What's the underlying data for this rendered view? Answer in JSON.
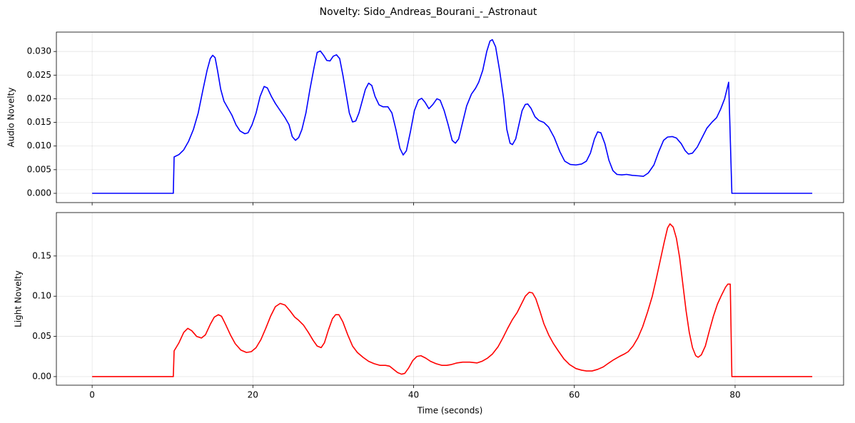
{
  "title": "Novelty: Sido_Andreas_Bourani_-_Astronaut",
  "chart_data": [
    {
      "type": "line",
      "ylabel": "Audio Novelty",
      "color": "#0000ff",
      "grid": true,
      "xlim": [
        -4.45,
        93.5
      ],
      "ylim": [
        -0.00196,
        0.0341
      ],
      "xticks": [
        0,
        20,
        40,
        60,
        80
      ],
      "yticks": [
        {
          "value": 0,
          "label": "0.000"
        },
        {
          "value": 0.005,
          "label": "0.005"
        },
        {
          "value": 0.01,
          "label": "0.010"
        },
        {
          "value": 0.015,
          "label": "0.015"
        },
        {
          "value": 0.02,
          "label": "0.020"
        },
        {
          "value": 0.025,
          "label": "0.025"
        },
        {
          "value": 0.03,
          "label": "0.030"
        }
      ],
      "x": [
        0,
        10,
        10.1,
        10.2,
        10.8,
        11.4,
        12,
        12.6,
        13.2,
        13.8,
        14.3,
        14.7,
        15.0,
        15.3,
        15.6,
        16.0,
        16.4,
        16.9,
        17.4,
        17.9,
        18.4,
        19.0,
        19.4,
        19.9,
        20.4,
        20.9,
        21.4,
        21.8,
        22.3,
        22.8,
        23.4,
        24,
        24.5,
        24.9,
        25.3,
        25.7,
        26.1,
        26.6,
        27.1,
        27.6,
        28.0,
        28.4,
        28.8,
        29.2,
        29.6,
        30.0,
        30.4,
        30.8,
        31.2,
        31.6,
        32.0,
        32.4,
        32.8,
        33.2,
        33.6,
        34.0,
        34.4,
        34.8,
        35.2,
        35.7,
        36.2,
        36.8,
        37.3,
        37.8,
        38.3,
        38.7,
        39.1,
        39.6,
        40.1,
        40.6,
        41.0,
        41.4,
        41.9,
        42.4,
        42.9,
        43.3,
        43.8,
        44.3,
        44.8,
        45.2,
        45.6,
        46.1,
        46.6,
        47.2,
        47.7,
        48.1,
        48.6,
        49.1,
        49.5,
        49.8,
        50.2,
        50.7,
        51.2,
        51.6,
        52.0,
        52.3,
        52.7,
        53.1,
        53.5,
        53.9,
        54.2,
        54.6,
        55.1,
        55.6,
        56.2,
        56.8,
        57.5,
        58.2,
        58.8,
        59.5,
        60.2,
        60.9,
        61.5,
        62.0,
        62.5,
        62.9,
        63.3,
        63.8,
        64.3,
        64.8,
        65.3,
        65.9,
        66.5,
        67.2,
        68.0,
        68.6,
        69.2,
        69.9,
        70.5,
        71.1,
        71.6,
        72.2,
        72.7,
        73.3,
        73.8,
        74.2,
        74.7,
        75.3,
        75.9,
        76.5,
        77.1,
        77.7,
        78.2,
        78.7,
        79.2,
        79.6,
        89.6
      ],
      "values": [
        0,
        0,
        0,
        0.0077,
        0.0082,
        0.0092,
        0.011,
        0.0135,
        0.017,
        0.022,
        0.026,
        0.0285,
        0.0292,
        0.0287,
        0.026,
        0.022,
        0.0195,
        0.018,
        0.0165,
        0.0145,
        0.0132,
        0.0126,
        0.0128,
        0.0145,
        0.017,
        0.0205,
        0.0226,
        0.0223,
        0.0205,
        0.019,
        0.0175,
        0.016,
        0.0145,
        0.012,
        0.0112,
        0.0118,
        0.0135,
        0.017,
        0.022,
        0.0265,
        0.0298,
        0.0301,
        0.0292,
        0.0281,
        0.028,
        0.029,
        0.0293,
        0.0285,
        0.025,
        0.021,
        0.017,
        0.0151,
        0.0153,
        0.017,
        0.0195,
        0.022,
        0.0233,
        0.0228,
        0.0205,
        0.0187,
        0.0183,
        0.0183,
        0.017,
        0.0135,
        0.0095,
        0.0081,
        0.009,
        0.013,
        0.0175,
        0.0197,
        0.0201,
        0.0193,
        0.0179,
        0.0188,
        0.02,
        0.0197,
        0.0175,
        0.0145,
        0.0112,
        0.0106,
        0.0115,
        0.015,
        0.0185,
        0.021,
        0.0222,
        0.0235,
        0.026,
        0.03,
        0.0322,
        0.0325,
        0.031,
        0.026,
        0.02,
        0.0135,
        0.0106,
        0.0103,
        0.0115,
        0.0145,
        0.0175,
        0.0188,
        0.0189,
        0.018,
        0.0162,
        0.0154,
        0.015,
        0.014,
        0.0118,
        0.0088,
        0.0068,
        0.0061,
        0.006,
        0.0062,
        0.0068,
        0.0085,
        0.0115,
        0.013,
        0.0128,
        0.0105,
        0.007,
        0.0048,
        0.004,
        0.0039,
        0.004,
        0.0038,
        0.0037,
        0.0036,
        0.0043,
        0.006,
        0.0088,
        0.0112,
        0.0119,
        0.012,
        0.0117,
        0.0105,
        0.009,
        0.0083,
        0.0085,
        0.0098,
        0.0118,
        0.0138,
        0.015,
        0.016,
        0.0178,
        0.02,
        0.0235,
        0,
        0
      ]
    },
    {
      "type": "line",
      "ylabel": "Light Novelty",
      "xlabel": "Time (seconds)",
      "color": "#ff0000",
      "grid": true,
      "xlim": [
        -4.45,
        93.5
      ],
      "ylim": [
        -0.0107,
        0.204
      ],
      "xticks": [
        0,
        20,
        40,
        60,
        80
      ],
      "yticks": [
        {
          "value": 0,
          "label": "0.00"
        },
        {
          "value": 0.05,
          "label": "0.05"
        },
        {
          "value": 0.1,
          "label": "0.10"
        },
        {
          "value": 0.15,
          "label": "0.15"
        }
      ],
      "x": [
        0,
        10,
        10.1,
        10.2,
        10.8,
        11.4,
        11.9,
        12.4,
        13.0,
        13.6,
        14.1,
        14.7,
        15.2,
        15.7,
        16.1,
        16.6,
        17.2,
        17.8,
        18.5,
        19.2,
        19.8,
        20.4,
        21.0,
        21.6,
        22.2,
        22.8,
        23.4,
        24.0,
        24.6,
        25.2,
        25.7,
        26.3,
        26.9,
        27.5,
        28.0,
        28.5,
        28.9,
        29.4,
        29.9,
        30.3,
        30.7,
        31.2,
        31.8,
        32.4,
        33.0,
        33.7,
        34.4,
        35.1,
        35.8,
        36.5,
        37.0,
        37.5,
        38.0,
        38.5,
        38.9,
        39.4,
        39.9,
        40.4,
        40.9,
        41.5,
        42.1,
        42.8,
        43.5,
        44.1,
        44.7,
        45.4,
        46.1,
        47.0,
        47.9,
        48.5,
        49.2,
        49.8,
        50.5,
        51.1,
        51.7,
        52.3,
        52.9,
        53.4,
        53.9,
        54.4,
        54.8,
        55.2,
        55.7,
        56.2,
        56.8,
        57.4,
        58.0,
        58.7,
        59.4,
        60.2,
        60.9,
        61.5,
        62.2,
        62.9,
        63.6,
        64.3,
        64.9,
        65.6,
        66.2,
        66.7,
        67.3,
        67.9,
        68.5,
        69.1,
        69.7,
        70.2,
        70.7,
        71.2,
        71.6,
        71.9,
        72.3,
        72.7,
        73.1,
        73.5,
        73.9,
        74.3,
        74.7,
        75.1,
        75.4,
        75.8,
        76.3,
        76.8,
        77.3,
        77.8,
        78.3,
        78.8,
        79.1,
        79.4,
        79.6,
        89.6
      ],
      "values": [
        0,
        0,
        0,
        0.032,
        0.042,
        0.055,
        0.06,
        0.057,
        0.05,
        0.048,
        0.052,
        0.065,
        0.074,
        0.077,
        0.075,
        0.065,
        0.052,
        0.041,
        0.033,
        0.03,
        0.031,
        0.036,
        0.046,
        0.06,
        0.075,
        0.087,
        0.091,
        0.089,
        0.082,
        0.074,
        0.07,
        0.064,
        0.055,
        0.045,
        0.038,
        0.036,
        0.042,
        0.058,
        0.072,
        0.077,
        0.077,
        0.068,
        0.052,
        0.038,
        0.03,
        0.024,
        0.019,
        0.016,
        0.014,
        0.014,
        0.013,
        0.009,
        0.005,
        0.003,
        0.004,
        0.011,
        0.02,
        0.025,
        0.026,
        0.023,
        0.019,
        0.016,
        0.014,
        0.014,
        0.015,
        0.017,
        0.018,
        0.018,
        0.017,
        0.019,
        0.023,
        0.028,
        0.037,
        0.048,
        0.06,
        0.071,
        0.08,
        0.09,
        0.1,
        0.105,
        0.104,
        0.097,
        0.082,
        0.066,
        0.052,
        0.041,
        0.032,
        0.022,
        0.015,
        0.01,
        0.008,
        0.007,
        0.007,
        0.009,
        0.012,
        0.017,
        0.021,
        0.025,
        0.028,
        0.031,
        0.038,
        0.048,
        0.062,
        0.08,
        0.1,
        0.122,
        0.145,
        0.168,
        0.185,
        0.19,
        0.186,
        0.172,
        0.148,
        0.115,
        0.082,
        0.055,
        0.036,
        0.026,
        0.024,
        0.027,
        0.038,
        0.057,
        0.075,
        0.09,
        0.101,
        0.111,
        0.115,
        0.115,
        0,
        0
      ]
    }
  ]
}
